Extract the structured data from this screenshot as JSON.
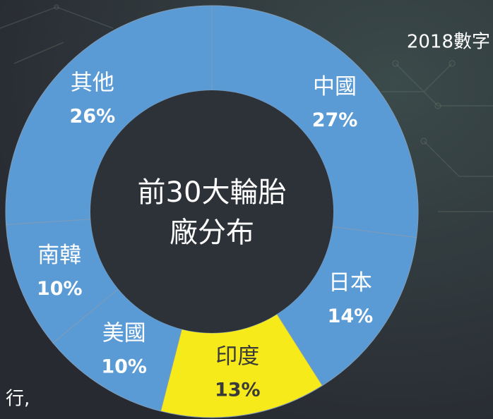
{
  "chart_data": {
    "type": "donut",
    "title_lines": [
      "前30大輪胎",
      "廠分布"
    ],
    "categories": [
      "中國",
      "日本",
      "印度",
      "美國",
      "南韓",
      "其他"
    ],
    "values": [
      27,
      14,
      13,
      10,
      10,
      26
    ],
    "value_labels": [
      "27%",
      "14%",
      "13%",
      "10%",
      "10%",
      "26%"
    ],
    "colors": [
      "#5b9bd5",
      "#5b9bd5",
      "#f7ea1a",
      "#5b9bd5",
      "#5b9bd5",
      "#5b9bd5"
    ],
    "label_colors": [
      "#ffffff",
      "#ffffff",
      "#3a3a3a",
      "#ffffff",
      "#ffffff",
      "#ffffff"
    ]
  },
  "corner_text": "2018數字",
  "side_text": "行,"
}
